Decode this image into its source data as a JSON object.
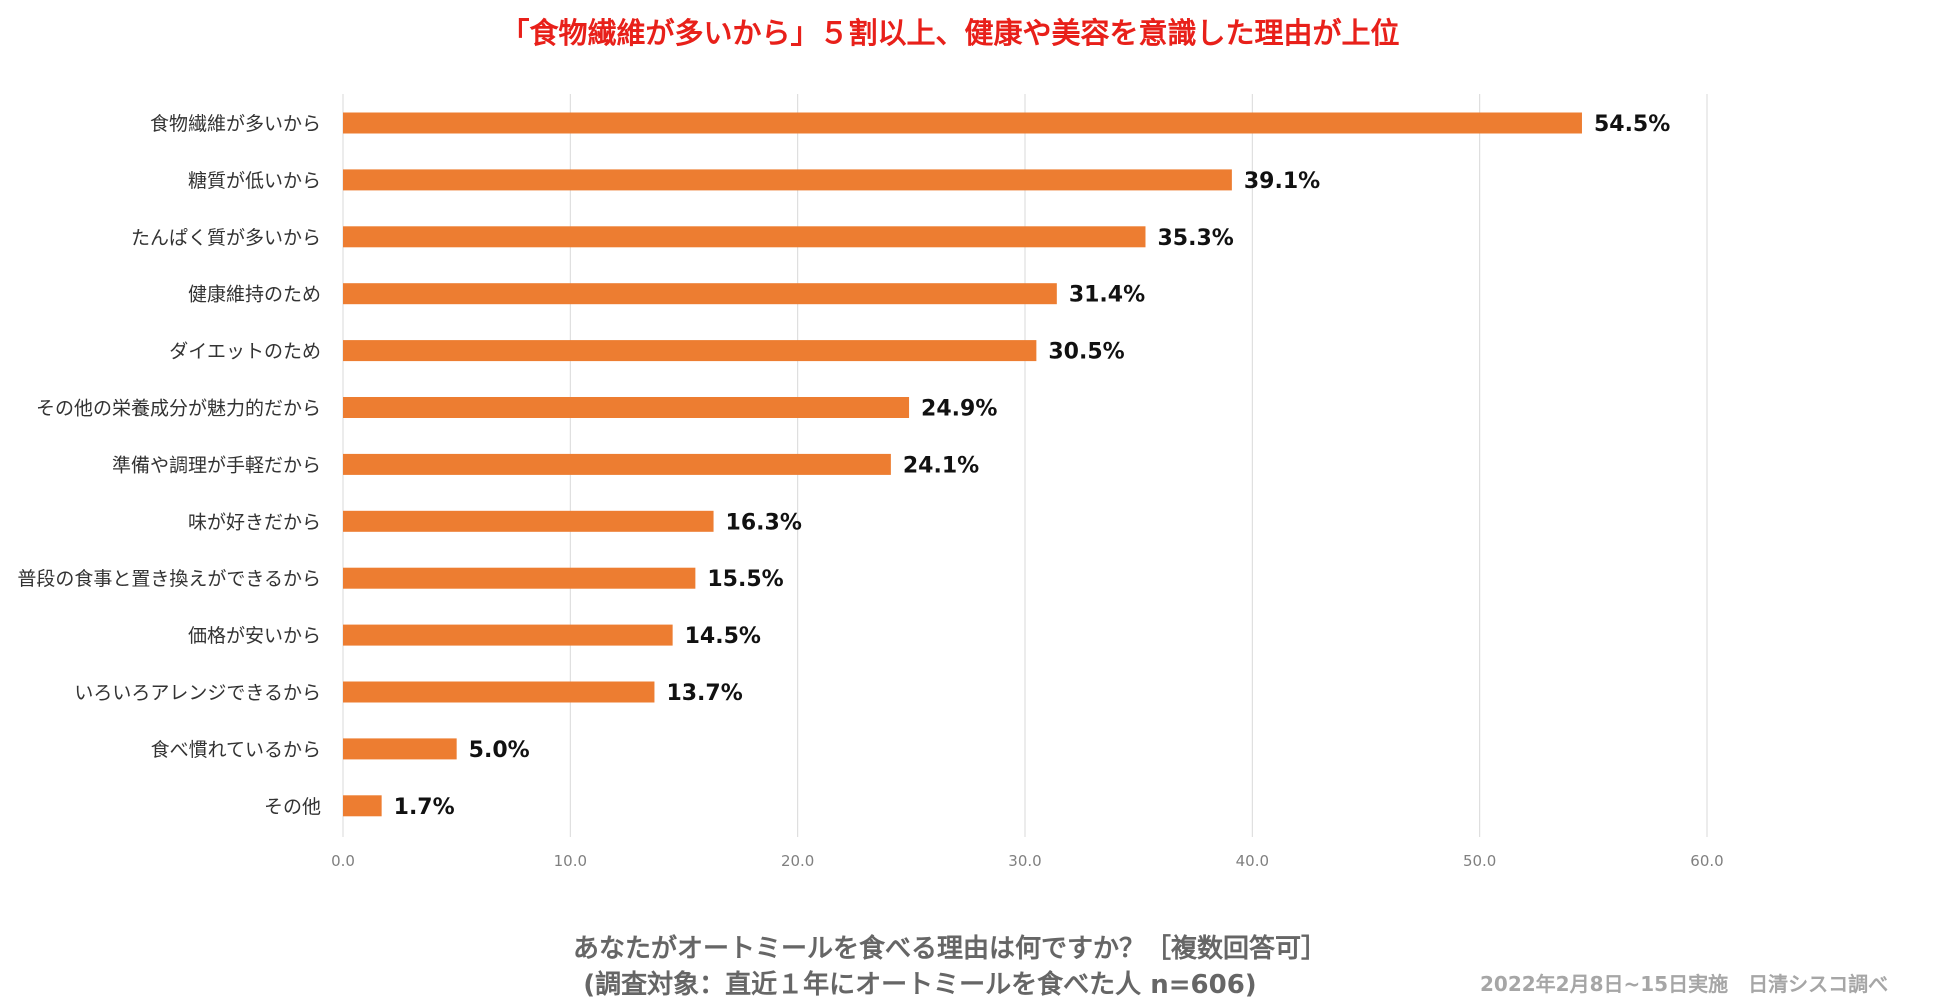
{
  "title": "「食物繊維が多いから」５割以上、健康や美容を意識した理由が上位",
  "question": {
    "line1": "あなたがオートミールを食べる理由は何ですか？［複数回答可］",
    "line2": "(調査対象：直近１年にオートミールを食べた人 n=606)"
  },
  "note": "2022年2月8日~15日実施　日清シスコ調べ",
  "chart_data": {
    "type": "bar",
    "orientation": "horizontal",
    "categories": [
      "食物繊維が多いから",
      "糖質が低いから",
      "たんぱく質が多いから",
      "健康維持のため",
      "ダイエットのため",
      "その他の栄養成分が魅力的だから",
      "準備や調理が手軽だから",
      "味が好きだから",
      "普段の食事と置き換えができるから",
      "価格が安いから",
      "いろいろアレンジできるから",
      "食べ慣れているから",
      "その他"
    ],
    "values": [
      54.5,
      39.1,
      35.3,
      31.4,
      30.5,
      24.9,
      24.1,
      16.3,
      15.5,
      14.5,
      13.7,
      5.0,
      1.7
    ],
    "data_labels": [
      "54.5%",
      "39.1%",
      "35.3%",
      "31.4%",
      "30.5%",
      "24.9%",
      "24.1%",
      "16.3%",
      "15.5%",
      "14.5%",
      "13.7%",
      "5.0%",
      "1.7%"
    ],
    "xlim": [
      0,
      60
    ],
    "xticks": [
      "0.0",
      "10.0",
      "20.0",
      "30.0",
      "40.0",
      "50.0",
      "60.0"
    ],
    "grid": "vertical",
    "bar_color": "#ed7d31"
  }
}
